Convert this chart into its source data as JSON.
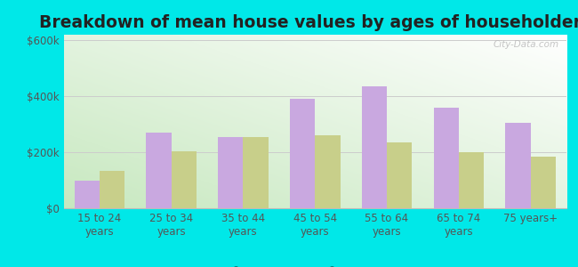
{
  "title": "Breakdown of mean house values by ages of householders",
  "categories": [
    "15 to 24\nyears",
    "25 to 34\nyears",
    "35 to 44\nyears",
    "45 to 54\nyears",
    "55 to 64\nyears",
    "65 to 74\nyears",
    "75 years+"
  ],
  "gibraltar": [
    100000,
    270000,
    255000,
    390000,
    435000,
    360000,
    305000
  ],
  "wisconsin": [
    135000,
    205000,
    255000,
    260000,
    235000,
    200000,
    185000
  ],
  "gibraltar_color": "#c9a8e0",
  "wisconsin_color": "#c8cf8a",
  "outer_bg": "#00e8e8",
  "plot_bg_colors": [
    "#c8e8c0",
    "#f0f8ee"
  ],
  "ylim": [
    0,
    620000
  ],
  "yticks": [
    0,
    200000,
    400000,
    600000
  ],
  "ytick_labels": [
    "$0",
    "$200k",
    "$400k",
    "$600k"
  ],
  "bar_width": 0.35,
  "title_fontsize": 13.5,
  "tick_fontsize": 8.5,
  "legend_fontsize": 9.5,
  "watermark": "City-Data.com"
}
